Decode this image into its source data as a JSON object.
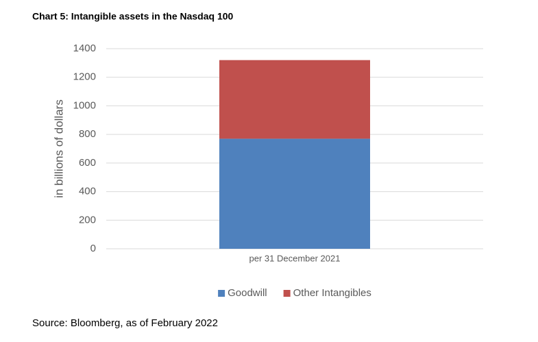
{
  "chart_data": {
    "type": "stacked_bar",
    "title": "Chart 5: Intangible assets in the Nasdaq 100",
    "y_label": "in billions of dollars",
    "categories": [
      "per 31 December 2021"
    ],
    "series": [
      {
        "name": "Goodwill",
        "color": "#4f81bd",
        "values": [
          770
        ]
      },
      {
        "name": "Other Intangibles",
        "color": "#c0504d",
        "values": [
          550
        ]
      }
    ],
    "ylim": [
      0,
      1400
    ],
    "yticks": [
      0,
      200,
      400,
      600,
      800,
      1000,
      1200,
      1400
    ],
    "grid": true,
    "legend": "bottom",
    "source": "Source: Bloomberg, as of February 2022"
  }
}
